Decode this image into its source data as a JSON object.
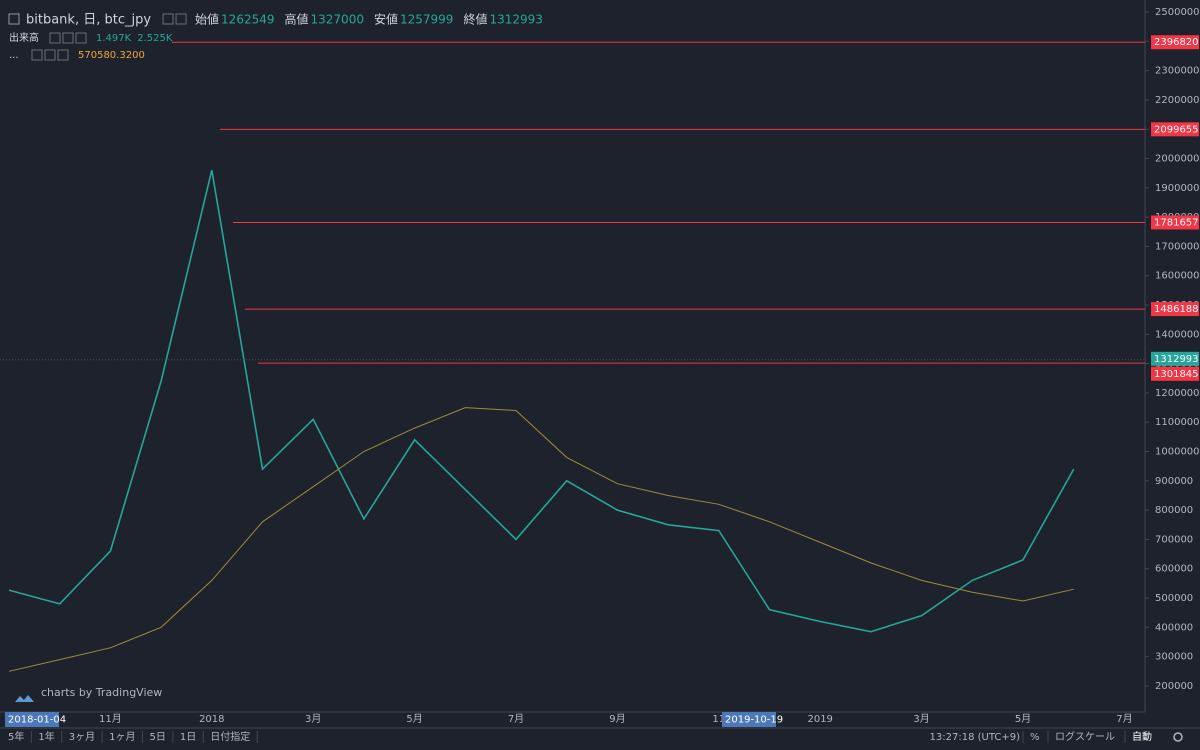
{
  "header": {
    "symbol": "bitbank, 日, btc_jpy",
    "ohlc": [
      {
        "label": "始値",
        "value": 1262549
      },
      {
        "label": "高値",
        "value": 1327000
      },
      {
        "label": "安値",
        "value": 1257999
      },
      {
        "label": "終値",
        "value": 1312993
      }
    ]
  },
  "volume": {
    "label": "出来高",
    "values": [
      "1.497K",
      "2.525K"
    ]
  },
  "indicator": {
    "label": "...",
    "value": "570580.3200"
  },
  "chart_data": {
    "type": "line",
    "categories": [
      null,
      null,
      "11月",
      null,
      "2018",
      null,
      "3月",
      null,
      "5月",
      null,
      "7月",
      null,
      "9月",
      null,
      "11",
      null,
      "2019",
      null,
      "3月",
      null,
      "5月",
      null,
      "7月"
    ],
    "series": [
      {
        "color": "#26a69a",
        "values": [
          527000,
          480000,
          660000,
          1240000,
          1960000,
          940000,
          1110000,
          770000,
          1040000,
          870000,
          700000,
          900000,
          800000,
          750000,
          730000,
          460000,
          420000,
          385000,
          440000,
          560000,
          630000,
          940000,
          null
        ]
      },
      {
        "color": "#a08a3c",
        "values": [
          250000,
          290000,
          330000,
          400000,
          560000,
          760000,
          880000,
          1000000,
          1080000,
          1150000,
          1140000,
          980000,
          890000,
          850000,
          820000,
          760000,
          690000,
          620000,
          560000,
          520000,
          490000,
          530000,
          null
        ]
      }
    ],
    "levels": [
      2396820,
      2099655,
      1781657,
      1486188,
      1301845
    ],
    "level_color": "#f23645",
    "ylim": [
      111000,
      2541000
    ],
    "yticks": [
      200000,
      300000,
      400000,
      500000,
      600000,
      700000,
      800000,
      900000,
      1000000,
      1100000,
      1200000,
      1300000,
      1400000,
      1500000,
      1600000,
      1700000,
      1800000,
      1900000,
      2000000,
      2100000,
      2200000,
      2300000,
      2400000,
      2500000
    ],
    "grid": false
  },
  "date_labels": [
    "2018-01-04",
    "2019-10-19"
  ],
  "watermark": "charts by TradingView",
  "toolbar": {
    "ranges": [
      "5年",
      "1年",
      "3ヶ月",
      "1ヶ月",
      "5日",
      "1日",
      "日付指定"
    ],
    "time": "13:27:18 (UTC+9)",
    "options": [
      "%",
      "ログスケール",
      "自動"
    ]
  }
}
